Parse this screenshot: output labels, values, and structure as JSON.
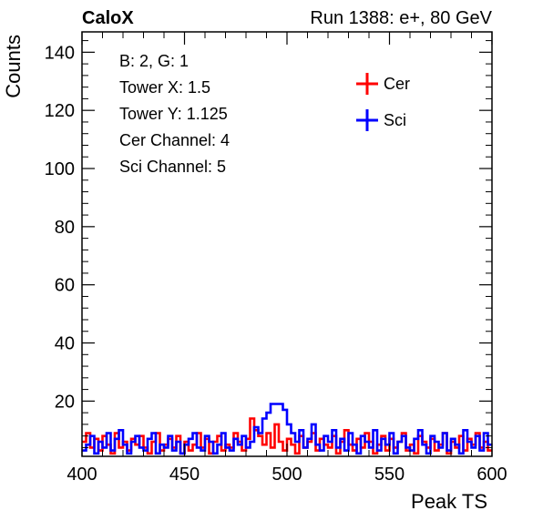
{
  "header": {
    "brand": "CaloX",
    "run_info": "Run 1388: e+, 80 GeV"
  },
  "info_box": {
    "lines": [
      "B: 2, G: 1",
      "Tower X: 1.5",
      "Tower Y: 1.125",
      "Cer Channel: 4",
      "Sci Channel: 5"
    ]
  },
  "colors": {
    "cer": "#ff0000",
    "sci": "#0000ff"
  },
  "chart_data": {
    "type": "line",
    "title": "",
    "xlabel": "Peak TS",
    "ylabel": "Counts",
    "xlim": [
      400,
      600
    ],
    "ylim": [
      1,
      147
    ],
    "x_ticks": [
      400,
      450,
      500,
      550,
      600
    ],
    "y_ticks": [
      20,
      40,
      60,
      80,
      100,
      120,
      140
    ],
    "grid": false,
    "legend_position": "top-right",
    "bin_width": 2,
    "x": [
      401,
      403,
      405,
      407,
      409,
      411,
      413,
      415,
      417,
      419,
      421,
      423,
      425,
      427,
      429,
      431,
      433,
      435,
      437,
      439,
      441,
      443,
      445,
      447,
      449,
      451,
      453,
      455,
      457,
      459,
      461,
      463,
      465,
      467,
      469,
      471,
      473,
      475,
      477,
      479,
      481,
      483,
      485,
      487,
      489,
      491,
      493,
      495,
      497,
      499,
      501,
      503,
      505,
      507,
      509,
      511,
      513,
      515,
      517,
      519,
      521,
      523,
      525,
      527,
      529,
      531,
      533,
      535,
      537,
      539,
      541,
      543,
      545,
      547,
      549,
      551,
      553,
      555,
      557,
      559,
      561,
      563,
      565,
      567,
      569,
      571,
      573,
      575,
      577,
      579,
      581,
      583,
      585,
      587,
      589,
      591,
      593,
      595,
      597,
      599
    ],
    "series": [
      {
        "name": "Cer",
        "color": "#ff0000",
        "values": [
          6,
          9,
          4,
          7,
          3,
          8,
          5,
          2,
          9,
          4,
          6,
          3,
          7,
          5,
          8,
          4,
          2,
          6,
          9,
          3,
          5,
          7,
          4,
          8,
          2,
          6,
          3,
          5,
          9,
          4,
          7,
          2,
          6,
          8,
          3,
          5,
          4,
          9,
          6,
          3,
          7,
          14,
          10,
          8,
          5,
          9,
          4,
          12,
          6,
          3,
          7,
          5,
          2,
          8,
          4,
          6,
          9,
          3,
          7,
          5,
          4,
          8,
          2,
          6,
          10,
          5,
          3,
          7,
          4,
          9,
          6,
          2,
          5,
          8,
          3,
          7,
          4,
          6,
          9,
          3,
          5,
          2,
          8,
          6,
          4,
          7,
          3,
          5,
          9,
          2,
          6,
          4,
          8,
          3,
          7,
          5,
          9,
          4,
          6,
          3
        ]
      },
      {
        "name": "Sci",
        "color": "#0000ff",
        "values": [
          3,
          5,
          8,
          2,
          6,
          4,
          9,
          3,
          7,
          10,
          5,
          2,
          6,
          8,
          4,
          3,
          7,
          9,
          2,
          5,
          4,
          8,
          3,
          6,
          2,
          5,
          7,
          9,
          4,
          3,
          8,
          6,
          2,
          5,
          9,
          4,
          3,
          7,
          5,
          8,
          4,
          6,
          11,
          9,
          14,
          16,
          19,
          19,
          19,
          17,
          12,
          9,
          6,
          10,
          4,
          7,
          12,
          5,
          3,
          8,
          6,
          10,
          4,
          7,
          3,
          9,
          5,
          2,
          8,
          6,
          4,
          10,
          3,
          7,
          5,
          9,
          2,
          6,
          8,
          4,
          3,
          7,
          10,
          5,
          2,
          8,
          6,
          4,
          9,
          3,
          7,
          5,
          2,
          10,
          6,
          4,
          8,
          3,
          9,
          5
        ]
      }
    ]
  }
}
